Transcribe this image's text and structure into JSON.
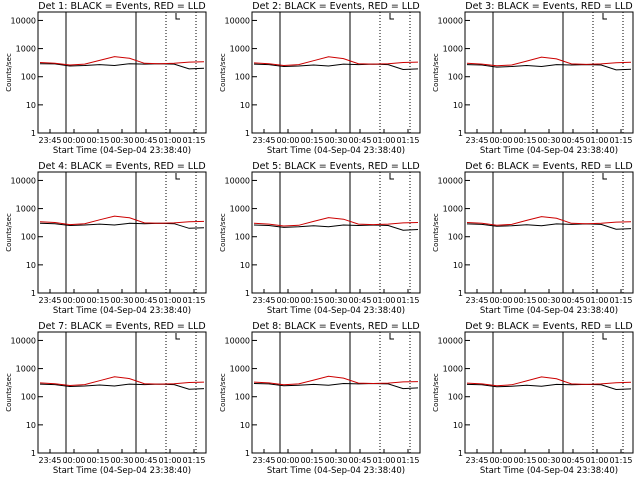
{
  "chart_data": [
    {
      "type": "line",
      "title": "Det 1: BLACK = Events, RED = LLD",
      "xlabel": "Start Time (04-Sep-04 23:38:40)",
      "ylabel": "Counts/sec",
      "x_ticks": [
        "23:45",
        "00:00",
        "00:15",
        "00:30",
        "00:45",
        "01:00",
        "01:15"
      ],
      "y_ticks": [
        "1",
        "10",
        "100",
        "1000",
        "10000"
      ],
      "log_y": true,
      "series": [
        {
          "name": "Events",
          "color": "#000000",
          "values": [
            290,
            285,
            240,
            250,
            270,
            250,
            290,
            280,
            290,
            280,
            190,
            200
          ]
        },
        {
          "name": "LLD",
          "color": "#cc0000",
          "values": [
            320,
            300,
            260,
            280,
            380,
            520,
            450,
            300,
            290,
            300,
            330,
            340
          ]
        }
      ]
    },
    {
      "type": "line",
      "title": "Det 2: BLACK = Events, RED = LLD",
      "xlabel": "Start Time (04-Sep-04 23:38:40)",
      "ylabel": "Counts/sec",
      "x_ticks": [
        "23:45",
        "00:00",
        "00:15",
        "00:30",
        "00:45",
        "01:00",
        "01:15"
      ],
      "y_ticks": [
        "1",
        "10",
        "100",
        "1000",
        "10000"
      ],
      "log_y": true,
      "series": [
        {
          "name": "Events",
          "color": "#000000",
          "values": [
            280,
            270,
            230,
            240,
            260,
            240,
            280,
            270,
            280,
            270,
            180,
            190
          ]
        },
        {
          "name": "LLD",
          "color": "#cc0000",
          "values": [
            310,
            290,
            250,
            270,
            370,
            510,
            440,
            290,
            280,
            290,
            320,
            330
          ]
        }
      ]
    },
    {
      "type": "line",
      "title": "Det 3: BLACK = Events, RED = LLD",
      "xlabel": "Start Time (04-Sep-04 23:38:40)",
      "ylabel": "Counts/sec",
      "x_ticks": [
        "23:45",
        "00:00",
        "00:15",
        "00:30",
        "00:45",
        "01:00",
        "01:15"
      ],
      "y_ticks": [
        "1",
        "10",
        "100",
        "1000",
        "10000"
      ],
      "log_y": true,
      "series": [
        {
          "name": "Events",
          "color": "#000000",
          "values": [
            270,
            260,
            220,
            230,
            250,
            230,
            270,
            260,
            270,
            260,
            175,
            185
          ]
        },
        {
          "name": "LLD",
          "color": "#cc0000",
          "values": [
            300,
            280,
            245,
            260,
            360,
            500,
            430,
            285,
            275,
            285,
            315,
            325
          ]
        }
      ]
    },
    {
      "type": "line",
      "title": "Det 4: BLACK = Events, RED = LLD",
      "xlabel": "Start Time (04-Sep-04 23:38:40)",
      "ylabel": "Counts/sec",
      "x_ticks": [
        "23:45",
        "00:00",
        "00:15",
        "00:30",
        "00:45",
        "01:00",
        "01:15"
      ],
      "y_ticks": [
        "1",
        "10",
        "100",
        "1000",
        "10000"
      ],
      "log_y": true,
      "series": [
        {
          "name": "Events",
          "color": "#000000",
          "values": [
            300,
            290,
            250,
            260,
            280,
            260,
            300,
            290,
            300,
            290,
            200,
            210
          ]
        },
        {
          "name": "LLD",
          "color": "#cc0000",
          "values": [
            340,
            320,
            270,
            290,
            400,
            540,
            470,
            310,
            300,
            310,
            340,
            350
          ]
        }
      ]
    },
    {
      "type": "line",
      "title": "Det 5: BLACK = Events, RED = LLD",
      "xlabel": "Start Time (04-Sep-04 23:38:40)",
      "ylabel": "Counts/sec",
      "x_ticks": [
        "23:45",
        "00:00",
        "00:15",
        "00:30",
        "00:45",
        "01:00",
        "01:15"
      ],
      "y_ticks": [
        "1",
        "10",
        "100",
        "1000",
        "10000"
      ],
      "log_y": true,
      "series": [
        {
          "name": "Events",
          "color": "#000000",
          "values": [
            260,
            250,
            215,
            225,
            245,
            225,
            260,
            250,
            260,
            250,
            170,
            180
          ]
        },
        {
          "name": "LLD",
          "color": "#cc0000",
          "values": [
            300,
            280,
            240,
            255,
            350,
            480,
            420,
            280,
            270,
            280,
            310,
            320
          ]
        }
      ]
    },
    {
      "type": "line",
      "title": "Det 6: BLACK = Events, RED = LLD",
      "xlabel": "Start Time (04-Sep-04 23:38:40)",
      "ylabel": "Counts/sec",
      "x_ticks": [
        "23:45",
        "00:00",
        "00:15",
        "00:30",
        "00:45",
        "01:00",
        "01:15"
      ],
      "y_ticks": [
        "1",
        "10",
        "100",
        "1000",
        "10000"
      ],
      "log_y": true,
      "series": [
        {
          "name": "Events",
          "color": "#000000",
          "values": [
            285,
            275,
            235,
            245,
            265,
            245,
            285,
            275,
            285,
            275,
            185,
            195
          ]
        },
        {
          "name": "LLD",
          "color": "#cc0000",
          "values": [
            320,
            300,
            255,
            275,
            380,
            520,
            450,
            300,
            290,
            300,
            330,
            340
          ]
        }
      ]
    },
    {
      "type": "line",
      "title": "Det 7: BLACK = Events, RED = LLD",
      "xlabel": "Start Time (04-Sep-04 23:38:40)",
      "ylabel": "Counts/sec",
      "x_ticks": [
        "23:45",
        "00:00",
        "00:15",
        "00:30",
        "00:45",
        "01:00",
        "01:15"
      ],
      "y_ticks": [
        "1",
        "10",
        "100",
        "1000",
        "10000"
      ],
      "log_y": true,
      "series": [
        {
          "name": "Events",
          "color": "#000000",
          "values": [
            280,
            270,
            230,
            240,
            260,
            240,
            280,
            270,
            280,
            270,
            185,
            195
          ]
        },
        {
          "name": "LLD",
          "color": "#cc0000",
          "values": [
            310,
            290,
            250,
            270,
            370,
            510,
            440,
            290,
            280,
            290,
            320,
            330
          ]
        }
      ]
    },
    {
      "type": "line",
      "title": "Det 8: BLACK = Events, RED = LLD",
      "xlabel": "Start Time (04-Sep-04 23:38:40)",
      "ylabel": "Counts/sec",
      "x_ticks": [
        "23:45",
        "00:00",
        "00:15",
        "00:30",
        "00:45",
        "01:00",
        "01:15"
      ],
      "y_ticks": [
        "1",
        "10",
        "100",
        "1000",
        "10000"
      ],
      "log_y": true,
      "series": [
        {
          "name": "Events",
          "color": "#000000",
          "values": [
            295,
            285,
            245,
            255,
            275,
            255,
            295,
            285,
            295,
            285,
            195,
            205
          ]
        },
        {
          "name": "LLD",
          "color": "#cc0000",
          "values": [
            330,
            310,
            265,
            285,
            390,
            530,
            460,
            305,
            295,
            305,
            335,
            345
          ]
        }
      ]
    },
    {
      "type": "line",
      "title": "Det 9: BLACK = Events, RED = LLD",
      "xlabel": "Start Time (04-Sep-04 23:38:40)",
      "ylabel": "Counts/sec",
      "x_ticks": [
        "23:45",
        "00:00",
        "00:15",
        "00:30",
        "00:45",
        "01:00",
        "01:15"
      ],
      "y_ticks": [
        "1",
        "10",
        "100",
        "1000",
        "10000"
      ],
      "log_y": true,
      "series": [
        {
          "name": "Events",
          "color": "#000000",
          "values": [
            275,
            265,
            225,
            235,
            255,
            235,
            275,
            265,
            275,
            265,
            180,
            190
          ]
        },
        {
          "name": "LLD",
          "color": "#cc0000",
          "values": [
            305,
            285,
            245,
            265,
            365,
            505,
            435,
            285,
            275,
            285,
            315,
            325
          ]
        }
      ]
    }
  ]
}
